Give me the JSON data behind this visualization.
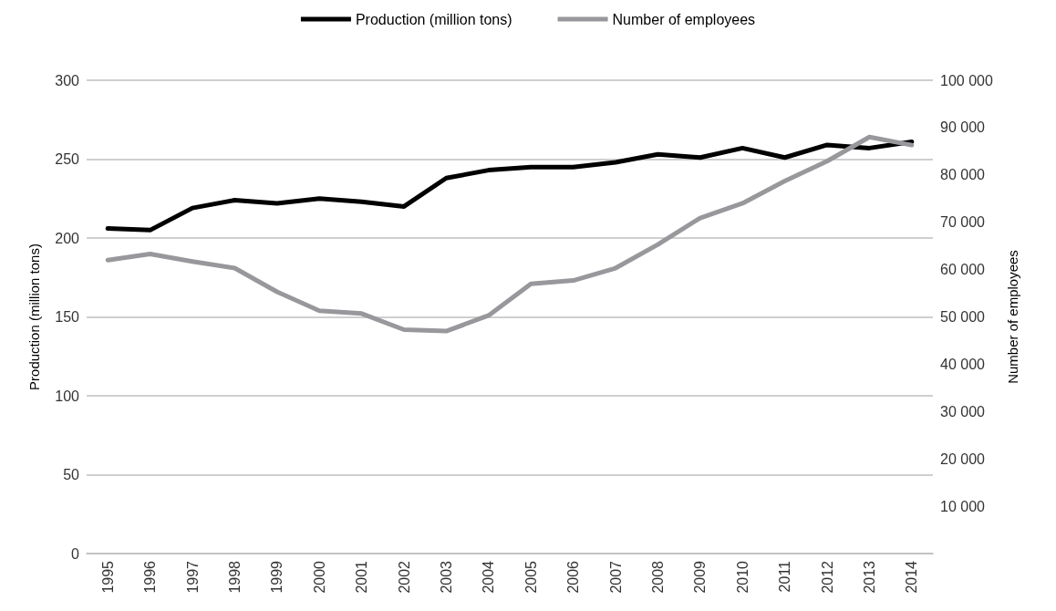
{
  "chart_data": {
    "type": "line",
    "ylabel": "Production (million tons)",
    "y2label": "Number of employees",
    "categories": [
      "1995",
      "1996",
      "1997",
      "1998",
      "1999",
      "2000",
      "2001",
      "2002",
      "2003",
      "2004",
      "2005",
      "2006",
      "2007",
      "2008",
      "2009",
      "2010",
      "2011",
      "2012",
      "2013",
      "2014"
    ],
    "series": [
      {
        "name": "Production (million tons)",
        "color": "#000000",
        "values": [
          206,
          205,
          219,
          224,
          222,
          225,
          223,
          220,
          238,
          243,
          245,
          245,
          248,
          253,
          251,
          257,
          251,
          259,
          257,
          261
        ]
      },
      {
        "name": "Number of employees",
        "color": "#98989c",
        "axis": "y2",
        "values": [
          62000,
          63300,
          61700,
          60300,
          55300,
          51300,
          50700,
          47300,
          47000,
          50300,
          57000,
          57700,
          60300,
          65300,
          70900,
          74000,
          78700,
          82900,
          88000,
          86300
        ]
      }
    ],
    "ylim": [
      0,
      300
    ],
    "yticks": [
      0,
      50,
      100,
      150,
      200,
      250,
      300
    ],
    "y2lim": [
      0,
      100000
    ],
    "y2ticks": [
      {
        "value": 0,
        "label": null
      },
      {
        "value": 10000,
        "label": "10 000"
      },
      {
        "value": 20000,
        "label": "20 000"
      },
      {
        "value": 30000,
        "label": "30 000"
      },
      {
        "value": 40000,
        "label": "40 000"
      },
      {
        "value": 50000,
        "label": "50 000"
      },
      {
        "value": 60000,
        "label": "60 000"
      },
      {
        "value": 70000,
        "label": "70 000"
      },
      {
        "value": 80000,
        "label": "80 000"
      },
      {
        "value": 90000,
        "label": "90 000"
      },
      {
        "value": 100000,
        "label": "100 000"
      }
    ],
    "grid": "y",
    "legend": "top",
    "marker": "none",
    "line_style": "solid"
  }
}
